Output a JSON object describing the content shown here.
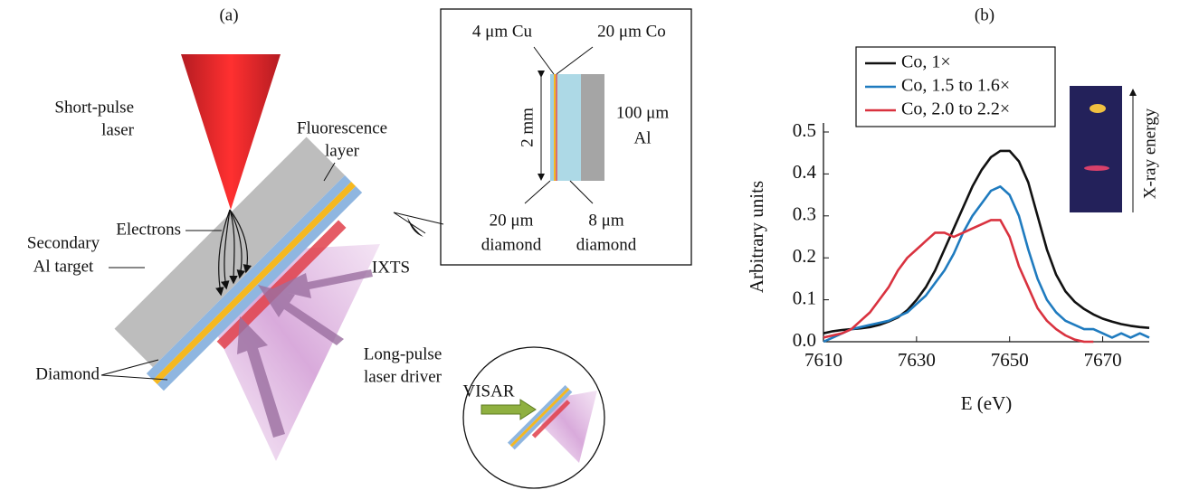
{
  "diagram": {
    "panel_label": "(a)",
    "short_pulse_laser": [
      "Short-pulse",
      "laser"
    ],
    "fluorescence_layer": [
      "Fluorescence",
      "layer"
    ],
    "electrons": "Electrons",
    "secondary_target": [
      "Secondary",
      "Al target"
    ],
    "diamond": "Diamond",
    "ixts": "IXTS",
    "long_pulse_driver": [
      "Long-pulse",
      "laser driver"
    ],
    "visar": "VISAR",
    "inset": {
      "cu": "4 μm Cu",
      "co": "20 μm Co",
      "width": "2 mm",
      "al": [
        "100 μm",
        "Al"
      ],
      "diamond_20": [
        "20 μm",
        "diamond"
      ],
      "diamond_8": [
        "8 μm",
        "diamond"
      ]
    }
  },
  "chart_data": {
    "type": "line",
    "title": "(b)",
    "xlabel": "E (eV)",
    "ylabel": "Arbitrary units",
    "inset_label": "X-ray energy",
    "x": [
      7610,
      7612,
      7614,
      7616,
      7618,
      7620,
      7622,
      7624,
      7626,
      7628,
      7630,
      7632,
      7634,
      7636,
      7638,
      7640,
      7642,
      7644,
      7646,
      7648,
      7650,
      7652,
      7654,
      7656,
      7658,
      7660,
      7662,
      7664,
      7666,
      7668,
      7670,
      7672,
      7674,
      7676,
      7678,
      7680
    ],
    "series": [
      {
        "name": "Co, 1×",
        "color": "#111111",
        "values": [
          0.02,
          0.025,
          0.028,
          0.03,
          0.032,
          0.035,
          0.04,
          0.048,
          0.058,
          0.075,
          0.1,
          0.13,
          0.17,
          0.22,
          0.27,
          0.32,
          0.37,
          0.41,
          0.44,
          0.455,
          0.455,
          0.43,
          0.38,
          0.3,
          0.22,
          0.16,
          0.12,
          0.095,
          0.078,
          0.065,
          0.055,
          0.048,
          0.042,
          0.038,
          0.035,
          0.033
        ]
      },
      {
        "name": "Co, 1.5 to 1.6×",
        "color": "#1f7bbf",
        "values": [
          0.0,
          0.01,
          0.02,
          0.03,
          0.035,
          0.04,
          0.045,
          0.05,
          0.06,
          0.07,
          0.09,
          0.11,
          0.14,
          0.17,
          0.21,
          0.26,
          0.3,
          0.33,
          0.36,
          0.37,
          0.35,
          0.3,
          0.22,
          0.15,
          0.1,
          0.07,
          0.05,
          0.04,
          0.03,
          0.03,
          0.02,
          0.01,
          0.02,
          0.01,
          0.02,
          0.01
        ]
      },
      {
        "name": "Co, 2.0 to 2.2×",
        "color": "#d9323f",
        "values": [
          0.01,
          0.015,
          0.02,
          0.03,
          0.05,
          0.07,
          0.1,
          0.13,
          0.17,
          0.2,
          0.22,
          0.24,
          0.26,
          0.26,
          0.25,
          0.26,
          0.27,
          0.28,
          0.29,
          0.29,
          0.25,
          0.18,
          0.13,
          0.08,
          0.05,
          0.03,
          0.015,
          0.005,
          0.0,
          0.0,
          null,
          null,
          null,
          null,
          null,
          null
        ]
      }
    ],
    "xlim": [
      7610,
      7680
    ],
    "xticks": [
      7610,
      7630,
      7650,
      7670
    ],
    "ylim": [
      0,
      0.5
    ],
    "yticks": [
      {
        "value": 0,
        "label": "0.0"
      },
      0.1,
      0.2,
      0.3,
      0.4,
      0.5
    ]
  }
}
